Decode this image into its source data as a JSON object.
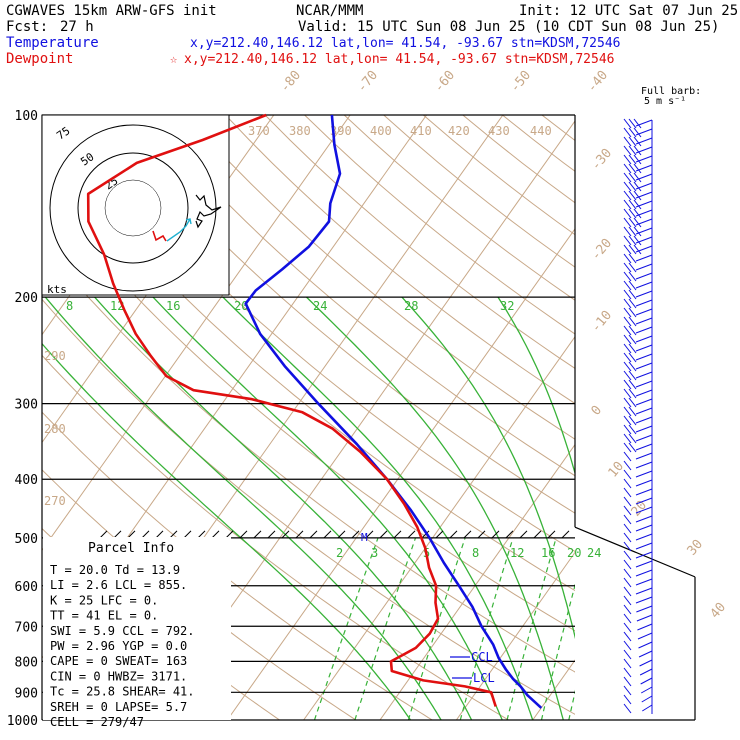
{
  "header": {
    "model": "CGWAVES 15km ARW-GFS init",
    "org": "NCAR/MMM",
    "init": "Init: 12 UTC Sat 07 Jun 25",
    "fcst_label": "Fcst:",
    "fcst_value": "27 h",
    "valid": "Valid: 15 UTC Sun 08 Jun 25 (10 CDT Sun 08 Jun 25)",
    "temperature_label": "Temperature",
    "temperature_info": "x,y=212.40,146.12   lat,lon= 41.54, -93.67   stn=KDSM,72546",
    "dewpoint_label": "Dewpoint",
    "dewpoint_info": "x,y=212.40,146.12   lat,lon= 41.54, -93.67   stn=KDSM,72546",
    "dewpoint_star": "☆"
  },
  "colors": {
    "temperature": "#1010e0",
    "dewpoint": "#e01010",
    "isotherm": "#c8a888",
    "mixing_ratio": "#38b238",
    "barbs": "#1010e0",
    "hodograph_trace": "#000000",
    "hodograph_motion": "#20b0d0"
  },
  "barb_legend": {
    "line1": "Full barb:",
    "line2": "5 m s⁻¹"
  },
  "hodograph": {
    "unit_label": "kts",
    "ring_labels": [
      "25",
      "50",
      "75"
    ]
  },
  "parcel_info": {
    "title": "Parcel Info",
    "rows": [
      "T   =   20.0 Td =  13.9",
      "LI  =    2.6 LCL =  855.",
      "K   =     25 LFC =    0.",
      "TT  =     41 EL  =    0.",
      "SWI =    5.9 CCL =  792.",
      "PW  =   2.96 YGP =   0.0",
      "CAPE =     0 SWEAT=  163",
      "CIN  =     0 HWBZ= 3171.",
      "Tc  =   25.8 SHEAR=  41.",
      "SREH =     0 LAPSE=   5.7",
      "CELL = 279/47"
    ]
  },
  "markers": {
    "ccl": "CCL",
    "lcl": "LCL",
    "melting": "M"
  },
  "chart_data": {
    "type": "line",
    "title": "CGWAVES 15km ARW-GFS init",
    "y_axis": {
      "scale": "log-pressure",
      "unit": "hPa",
      "range": [
        1000,
        100
      ],
      "ticks": [
        100,
        200,
        300,
        400,
        500,
        600,
        700,
        800,
        900,
        1000
      ]
    },
    "isotherm_labels": [
      -80,
      -70,
      -60,
      -50,
      -40,
      -30,
      -20,
      -10,
      0,
      10,
      20,
      30,
      40
    ],
    "theta_labels": [
      260,
      270,
      280,
      290,
      370,
      380,
      390,
      400,
      410,
      420,
      430,
      440
    ],
    "mixing_ratio_labels_upper": [
      8,
      12,
      16,
      20,
      24,
      28,
      32
    ],
    "mixing_ratio_labels_lower": [
      2,
      3,
      5,
      8,
      12,
      16,
      20,
      24
    ],
    "series": [
      {
        "name": "Temperature",
        "points": [
          {
            "p": 955,
            "t": 20.0
          },
          {
            "p": 910,
            "t": 17.0
          },
          {
            "p": 880,
            "t": 15.3
          },
          {
            "p": 855,
            "t": 13.6
          },
          {
            "p": 825,
            "t": 11.8
          },
          {
            "p": 790,
            "t": 9.8
          },
          {
            "p": 750,
            "t": 7.8
          },
          {
            "p": 700,
            "t": 4.6
          },
          {
            "p": 650,
            "t": 1.6
          },
          {
            "p": 600,
            "t": -2.1
          },
          {
            "p": 550,
            "t": -6.2
          },
          {
            "p": 500,
            "t": -10.4
          },
          {
            "p": 450,
            "t": -15.4
          },
          {
            "p": 400,
            "t": -21.4
          },
          {
            "p": 350,
            "t": -28.6
          },
          {
            "p": 300,
            "t": -37.4
          },
          {
            "p": 260,
            "t": -45.3
          },
          {
            "p": 230,
            "t": -51.5
          },
          {
            "p": 205,
            "t": -56.2
          },
          {
            "p": 195,
            "t": -56.1
          },
          {
            "p": 180,
            "t": -54.6
          },
          {
            "p": 165,
            "t": -53.2
          },
          {
            "p": 150,
            "t": -52.9
          },
          {
            "p": 140,
            "t": -54.4
          },
          {
            "p": 125,
            "t": -55.9
          },
          {
            "p": 112,
            "t": -59.3
          },
          {
            "p": 100,
            "t": -62.4
          }
        ]
      },
      {
        "name": "Dewpoint",
        "points": [
          {
            "p": 950,
            "t": 13.9
          },
          {
            "p": 900,
            "t": 12.0
          },
          {
            "p": 880,
            "t": 8.0
          },
          {
            "p": 860,
            "t": 2.0
          },
          {
            "p": 830,
            "t": -3.0
          },
          {
            "p": 800,
            "t": -4.0
          },
          {
            "p": 760,
            "t": -2.0
          },
          {
            "p": 720,
            "t": -1.5
          },
          {
            "p": 680,
            "t": -1.8
          },
          {
            "p": 640,
            "t": -3.6
          },
          {
            "p": 600,
            "t": -5.1
          },
          {
            "p": 560,
            "t": -7.7
          },
          {
            "p": 520,
            "t": -10.0
          },
          {
            "p": 480,
            "t": -13.0
          },
          {
            "p": 440,
            "t": -16.8
          },
          {
            "p": 400,
            "t": -21.4
          },
          {
            "p": 360,
            "t": -27.5
          },
          {
            "p": 330,
            "t": -33.2
          },
          {
            "p": 310,
            "t": -38.7
          },
          {
            "p": 295,
            "t": -46.5
          },
          {
            "p": 285,
            "t": -55.0
          },
          {
            "p": 270,
            "t": -59.9
          },
          {
            "p": 250,
            "t": -63.8
          },
          {
            "p": 230,
            "t": -67.8
          },
          {
            "p": 210,
            "t": -71.5
          },
          {
            "p": 190,
            "t": -75.4
          },
          {
            "p": 170,
            "t": -79.3
          },
          {
            "p": 150,
            "t": -84.4
          },
          {
            "p": 135,
            "t": -87.0
          },
          {
            "p": 120,
            "t": -83.5
          },
          {
            "p": 110,
            "t": -77.0
          },
          {
            "p": 100,
            "t": -71.0
          }
        ]
      }
    ],
    "legend": "top-left",
    "grid": true
  }
}
